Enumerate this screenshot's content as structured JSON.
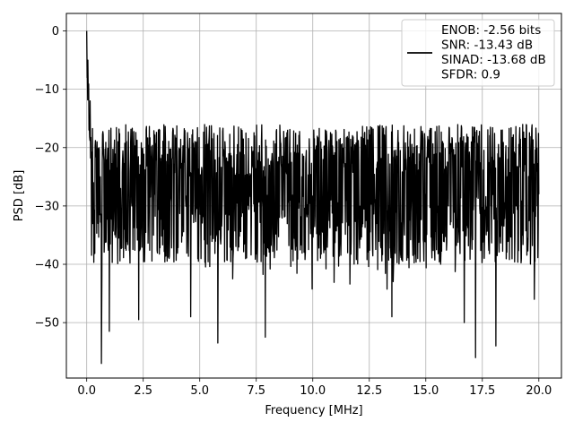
{
  "chart_data": {
    "type": "line",
    "title": "",
    "xlabel": "Frequency [MHz]",
    "ylabel": "PSD [dB]",
    "xlim": [
      -0.9,
      21.0
    ],
    "ylim": [
      -59.5,
      3.0
    ],
    "x_ticks": [
      0.0,
      2.5,
      5.0,
      7.5,
      10.0,
      12.5,
      15.0,
      17.5,
      20.0
    ],
    "x_tick_labels": [
      "0.0",
      "2.5",
      "5.0",
      "7.5",
      "10.0",
      "12.5",
      "15.0",
      "17.5",
      "20.0"
    ],
    "y_ticks": [
      0,
      -10,
      -20,
      -30,
      -40,
      -50
    ],
    "y_tick_labels": [
      "0",
      "−10",
      "−20",
      "−30",
      "−40",
      "−50"
    ],
    "grid": true,
    "legend_position": "top-right",
    "line_color": "#000000",
    "series": [
      {
        "name": "",
        "description_points": {
          "x": [
            0.0,
            0.02,
            0.05,
            0.1,
            0.15,
            0.2,
            0.3,
            0.4,
            0.5,
            0.6,
            0.65,
            0.8,
            1.0,
            1.5,
            2.0,
            2.3,
            3.0,
            4.0,
            4.6,
            5.0,
            5.8,
            6.0,
            7.0,
            7.9,
            9.0,
            10.0,
            11.0,
            12.0,
            13.5,
            14.0,
            15.0,
            16.0,
            16.7,
            17.0,
            17.2,
            18.0,
            18.1,
            19.0,
            19.8,
            20.0
          ],
          "y": [
            0.0,
            -8.0,
            -5.0,
            -17.0,
            -12.0,
            -23.0,
            -26.0,
            -20.0,
            -33.0,
            -25.0,
            -57.0,
            -28.0,
            -51.5,
            -27.0,
            -30.0,
            -49.5,
            -28.0,
            -30.0,
            -49.0,
            -27.0,
            -53.5,
            -28.0,
            -30.0,
            -52.5,
            -29.0,
            -30.0,
            -31.0,
            -29.0,
            -49.0,
            -30.0,
            -28.0,
            -30.0,
            -50.0,
            -29.0,
            -56.0,
            -28.0,
            -54.0,
            -30.0,
            -46.0,
            -28.0
          ]
        },
        "envelope": {
          "typical_upper": -16.0,
          "typical_lower": -40.0,
          "noise_floor_mean": -28.0,
          "peak_upper": -13.5
        }
      }
    ],
    "legend_lines": [
      "ENOB: -2.56 bits",
      "SNR: -13.43 dB",
      "SINAD: -13.68 dB",
      "SFDR: 0.9"
    ]
  }
}
